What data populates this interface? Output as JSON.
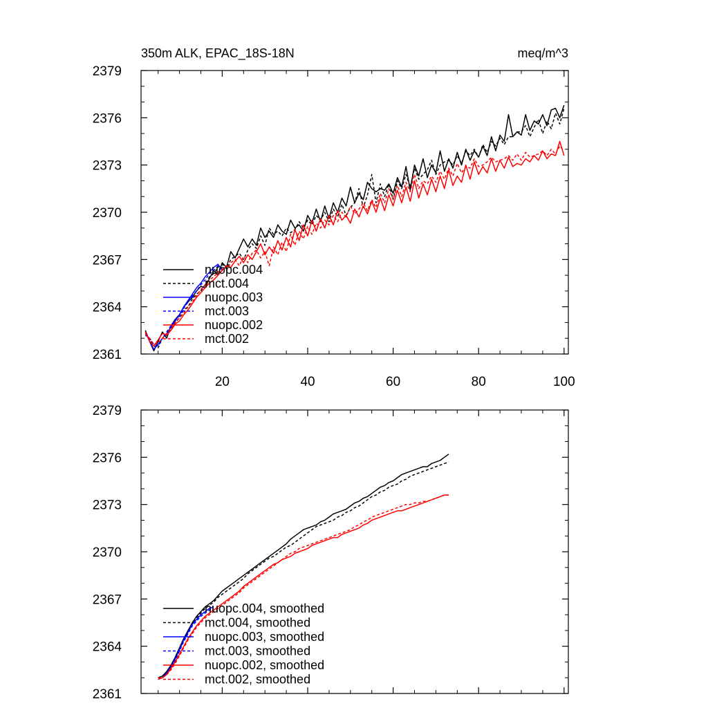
{
  "figure": {
    "title": "350m ALK, EPAC_18S-18N",
    "units": "meq/m^3"
  },
  "chart_data": [
    {
      "type": "line",
      "title": "350m ALK, EPAC_18S-18N",
      "units": "meq/m^3",
      "xlabel": "",
      "ylabel": "",
      "xlim": [
        1,
        101
      ],
      "ylim": [
        2361,
        2379
      ],
      "xticks": [
        20,
        40,
        60,
        80,
        100
      ],
      "yticks": [
        2361,
        2364,
        2367,
        2370,
        2373,
        2376,
        2379
      ],
      "legend_position": "bottom-left",
      "series": [
        {
          "name": "nuopc.004",
          "color": "#000000",
          "dash": "solid",
          "x_start": 2,
          "values": [
            2362.5,
            2361.8,
            2361.2,
            2361.8,
            2362.4,
            2362.0,
            2362.8,
            2363.2,
            2363.5,
            2364.0,
            2364.3,
            2364.6,
            2365.0,
            2365.3,
            2365.2,
            2365.8,
            2366.3,
            2366.0,
            2366.8,
            2366.5,
            2367.5,
            2367.1,
            2367.7,
            2368.3,
            2367.8,
            2368.3,
            2367.9,
            2369.0,
            2368.4,
            2368.8,
            2368.4,
            2369.2,
            2368.8,
            2368.6,
            2369.5,
            2369.0,
            2369.2,
            2368.8,
            2369.8,
            2369.3,
            2370.2,
            2369.4,
            2370.4,
            2369.6,
            2370.6,
            2370.0,
            2370.9,
            2370.4,
            2371.6,
            2370.6,
            2371.2,
            2370.8,
            2371.9,
            2371.5,
            2371.3,
            2371.5,
            2371.4,
            2371.8,
            2371.2,
            2372.2,
            2371.6,
            2372.9,
            2371.4,
            2373.0,
            2372.3,
            2373.4,
            2372.2,
            2373.0,
            2372.5,
            2373.9,
            2372.6,
            2373.4,
            2372.8,
            2373.8,
            2373.0,
            2374.0,
            2373.3,
            2373.9,
            2373.5,
            2374.2,
            2373.6,
            2374.8,
            2373.9,
            2374.9,
            2374.5,
            2376.2,
            2374.8,
            2375.1,
            2374.9,
            2376.2,
            2375.2,
            2375.8,
            2375.6,
            2376.2,
            2375.5,
            2376.5,
            2376.6,
            2376.0,
            2376.8
          ]
        },
        {
          "name": "mct.004",
          "color": "#000000",
          "dash": "dashed",
          "x_start": 2,
          "values": [
            2362.3,
            2361.9,
            2361.5,
            2361.4,
            2362.0,
            2362.2,
            2362.6,
            2363.0,
            2363.3,
            2363.8,
            2364.0,
            2364.5,
            2364.8,
            2365.0,
            2365.4,
            2365.9,
            2366.1,
            2366.5,
            2366.7,
            2366.4,
            2367.0,
            2367.2,
            2367.4,
            2367.0,
            2367.6,
            2368.0,
            2367.7,
            2368.5,
            2367.9,
            2369.0,
            2368.6,
            2368.8,
            2368.5,
            2369.0,
            2368.7,
            2368.9,
            2369.4,
            2369.0,
            2369.5,
            2369.2,
            2369.8,
            2369.5,
            2370.0,
            2369.4,
            2370.2,
            2369.7,
            2370.5,
            2369.8,
            2370.3,
            2370.6,
            2371.5,
            2370.3,
            2371.1,
            2372.4,
            2370.6,
            2371.8,
            2371.0,
            2371.8,
            2370.8,
            2372.0,
            2371.5,
            2372.4,
            2371.6,
            2372.8,
            2372.1,
            2372.4,
            2372.7,
            2373.3,
            2372.4,
            2373.0,
            2373.2,
            2373.3,
            2373.0,
            2373.6,
            2373.1,
            2373.9,
            2373.6,
            2374.0,
            2373.5,
            2374.3,
            2373.8,
            2374.5,
            2374.2,
            2374.7,
            2374.3,
            2374.8,
            2374.8,
            2375.1,
            2375.1,
            2375.5,
            2374.8,
            2375.4,
            2375.9,
            2375.0,
            2375.8,
            2375.3,
            2376.3,
            2375.6,
            2376.6
          ]
        },
        {
          "name": "nuopc.003",
          "color": "#0000ff",
          "dash": "solid",
          "x_start": 2,
          "values": [
            2362.4,
            2361.8,
            2361.3,
            2361.6,
            2362.0,
            2362.3,
            2362.7,
            2363.1,
            2363.5,
            2364.0,
            2364.4,
            2364.8,
            2365.2,
            2365.5,
            2365.9,
            2366.2,
            2366.5,
            2366.7,
            2366.3
          ]
        },
        {
          "name": "mct.003",
          "color": "#0000ff",
          "dash": "dashed",
          "x_start": 2,
          "values": [
            2362.2,
            2362.0,
            2361.6,
            2361.5,
            2362.0,
            2362.4,
            2362.8,
            2363.2,
            2363.4,
            2363.9,
            2364.3,
            2364.7,
            2365.0,
            2365.4,
            2365.7,
            2366.1,
            2366.3,
            2366.6,
            2366.4
          ]
        },
        {
          "name": "nuopc.002",
          "color": "#ff0000",
          "dash": "solid",
          "x_start": 2,
          "values": [
            2362.4,
            2361.8,
            2361.5,
            2361.9,
            2362.3,
            2362.2,
            2362.5,
            2362.9,
            2363.1,
            2363.5,
            2363.8,
            2364.2,
            2364.6,
            2364.9,
            2365.2,
            2365.5,
            2365.7,
            2366.0,
            2366.3,
            2366.6,
            2366.5,
            2366.9,
            2367.2,
            2366.8,
            2367.3,
            2367.0,
            2367.5,
            2368.0,
            2367.3,
            2367.8,
            2367.4,
            2368.2,
            2367.6,
            2368.4,
            2367.8,
            2368.9,
            2368.2,
            2369.2,
            2368.5,
            2369.5,
            2368.8,
            2369.6,
            2369.0,
            2369.8,
            2369.2,
            2370.1,
            2369.5,
            2369.8,
            2369.3,
            2370.2,
            2369.7,
            2370.4,
            2369.9,
            2370.7,
            2370.0,
            2370.9,
            2370.1,
            2371.1,
            2370.4,
            2371.4,
            2370.6,
            2371.6,
            2370.7,
            2372.0,
            2370.9,
            2371.8,
            2371.1,
            2372.1,
            2371.3,
            2372.3,
            2371.5,
            2372.7,
            2371.7,
            2372.3,
            2371.9,
            2373.0,
            2372.1,
            2373.2,
            2372.4,
            2372.9,
            2372.5,
            2373.4,
            2372.6,
            2373.3,
            2372.8,
            2373.5,
            2372.9,
            2373.1,
            2373.0,
            2373.4,
            2373.2,
            2373.6,
            2373.3,
            2373.9,
            2373.4,
            2373.7,
            2373.6,
            2374.5,
            2373.6
          ]
        },
        {
          "name": "mct.002",
          "color": "#ff0000",
          "dash": "dashed",
          "x_start": 2,
          "values": [
            2362.3,
            2362.0,
            2361.6,
            2361.7,
            2362.0,
            2362.3,
            2362.6,
            2363.0,
            2363.3,
            2363.6,
            2364.0,
            2364.3,
            2364.7,
            2365.1,
            2365.4,
            2365.7,
            2365.9,
            2366.2,
            2366.4,
            2366.3,
            2366.8,
            2367.0,
            2366.6,
            2367.2,
            2366.8,
            2367.4,
            2367.6,
            2367.1,
            2367.5,
            2366.6,
            2367.8,
            2367.3,
            2368.1,
            2367.5,
            2368.6,
            2367.9,
            2368.8,
            2368.3,
            2369.1,
            2368.6,
            2369.3,
            2369.0,
            2369.5,
            2369.2,
            2369.8,
            2369.4,
            2370.0,
            2369.7,
            2370.4,
            2369.9,
            2370.2,
            2370.6,
            2370.1,
            2370.8,
            2370.3,
            2371.2,
            2370.6,
            2371.5,
            2370.8,
            2371.7,
            2371.0,
            2371.9,
            2371.3,
            2372.4,
            2371.5,
            2372.0,
            2371.8,
            2372.3,
            2371.9,
            2372.6,
            2372.1,
            2372.8,
            2372.3,
            2373.1,
            2372.5,
            2372.9,
            2372.8,
            2373.4,
            2372.9,
            2373.0,
            2373.2,
            2373.5,
            2373.2,
            2373.3,
            2373.4,
            2373.6,
            2373.3,
            2373.7,
            2373.3,
            2373.8,
            2373.5,
            2373.6,
            2373.7,
            2373.9,
            2373.6,
            2374.0,
            2373.7,
            2374.2,
            2373.9
          ]
        }
      ]
    },
    {
      "type": "line",
      "title": "",
      "xlabel": "",
      "ylabel": "",
      "xlim": [
        1,
        101
      ],
      "ylim": [
        2361,
        2379
      ],
      "xticks": [
        20,
        40,
        60,
        80,
        100
      ],
      "yticks": [
        2361,
        2364,
        2367,
        2370,
        2373,
        2376,
        2379
      ],
      "legend_position": "bottom-left",
      "series": [
        {
          "name": "nuopc.004, smoothed",
          "color": "#000000",
          "dash": "solid",
          "x_start": 5,
          "values": [
            2362.0,
            2362.1,
            2362.4,
            2362.8,
            2363.3,
            2363.9,
            2364.5,
            2365.0,
            2365.5,
            2365.9,
            2366.2,
            2366.5,
            2366.7,
            2366.9,
            2367.2,
            2367.5,
            2367.7,
            2367.9,
            2368.1,
            2368.3,
            2368.5,
            2368.7,
            2368.9,
            2369.1,
            2369.3,
            2369.5,
            2369.7,
            2369.9,
            2370.1,
            2370.3,
            2370.5,
            2370.8,
            2371.0,
            2371.2,
            2371.4,
            2371.5,
            2371.6,
            2371.7,
            2371.9,
            2372.0,
            2372.2,
            2372.4,
            2372.5,
            2372.6,
            2372.7,
            2372.9,
            2373.1,
            2373.2,
            2373.4,
            2373.5,
            2373.7,
            2373.9,
            2374.1,
            2374.2,
            2374.4,
            2374.5,
            2374.7,
            2374.9,
            2375.0,
            2375.1,
            2375.2,
            2375.3,
            2375.4,
            2375.4,
            2375.6,
            2375.7,
            2375.8,
            2376.0,
            2376.2
          ]
        },
        {
          "name": "mct.004, smoothed",
          "color": "#000000",
          "dash": "dashed",
          "x_start": 5,
          "values": [
            2362.0,
            2362.1,
            2362.3,
            2362.7,
            2363.2,
            2363.8,
            2364.4,
            2364.9,
            2365.4,
            2365.8,
            2366.1,
            2366.4,
            2366.6,
            2366.8,
            2367.1,
            2367.3,
            2367.5,
            2367.7,
            2367.9,
            2368.1,
            2368.3,
            2368.6,
            2368.8,
            2369.0,
            2369.2,
            2369.4,
            2369.6,
            2369.7,
            2369.9,
            2370.1,
            2370.3,
            2370.4,
            2370.6,
            2370.8,
            2371.0,
            2371.2,
            2371.4,
            2371.6,
            2371.7,
            2371.8,
            2371.9,
            2372.0,
            2372.2,
            2372.3,
            2372.5,
            2372.6,
            2372.8,
            2372.9,
            2373.1,
            2373.3,
            2373.5,
            2373.6,
            2373.8,
            2373.9,
            2374.1,
            2374.2,
            2374.3,
            2374.5,
            2374.6,
            2374.8,
            2374.9,
            2375.0,
            2375.1,
            2375.2,
            2375.3,
            2375.4,
            2375.5,
            2375.6,
            2375.7
          ]
        },
        {
          "name": "nuopc.003, smoothed",
          "color": "#0000ff",
          "dash": "solid",
          "x_start": 5,
          "values": [
            2361.9,
            2362.0,
            2362.3,
            2362.7,
            2363.2,
            2363.8,
            2364.4,
            2364.9,
            2365.4,
            2365.7,
            2366.0,
            2366.2,
            2366.4,
            2366.5
          ]
        },
        {
          "name": "mct.003, smoothed",
          "color": "#0000ff",
          "dash": "dashed",
          "x_start": 5,
          "values": [
            2361.9,
            2362.0,
            2362.2,
            2362.6,
            2363.1,
            2363.7,
            2364.3,
            2364.8,
            2365.3,
            2365.6,
            2365.9,
            2366.1,
            2366.3,
            2366.4
          ]
        },
        {
          "name": "nuopc.002, smoothed",
          "color": "#ff0000",
          "dash": "solid",
          "x_start": 5,
          "values": [
            2361.9,
            2362.0,
            2362.2,
            2362.6,
            2363.0,
            2363.5,
            2364.0,
            2364.5,
            2364.9,
            2365.3,
            2365.6,
            2365.9,
            2366.1,
            2366.3,
            2366.5,
            2366.7,
            2366.9,
            2367.1,
            2367.3,
            2367.5,
            2367.8,
            2368.0,
            2368.2,
            2368.4,
            2368.6,
            2368.8,
            2369.0,
            2369.2,
            2369.3,
            2369.5,
            2369.6,
            2369.7,
            2369.9,
            2370.0,
            2370.1,
            2370.2,
            2370.4,
            2370.5,
            2370.6,
            2370.7,
            2370.8,
            2370.9,
            2370.9,
            2371.1,
            2371.2,
            2371.3,
            2371.4,
            2371.5,
            2371.7,
            2371.8,
            2372.0,
            2372.1,
            2372.2,
            2372.3,
            2372.4,
            2372.5,
            2372.6,
            2372.6,
            2372.7,
            2372.8,
            2372.9,
            2373.0,
            2373.1,
            2373.2,
            2373.3,
            2373.4,
            2373.5,
            2373.6,
            2373.6
          ]
        },
        {
          "name": "mct.002, smoothed",
          "color": "#ff0000",
          "dash": "dashed",
          "x_start": 5,
          "values": [
            2362.0,
            2362.0,
            2362.2,
            2362.5,
            2362.9,
            2363.4,
            2363.9,
            2364.4,
            2364.8,
            2365.2,
            2365.5,
            2365.8,
            2366.0,
            2366.2,
            2366.4,
            2366.6,
            2366.8,
            2367.0,
            2367.2,
            2367.4,
            2367.7,
            2367.9,
            2368.1,
            2368.3,
            2368.5,
            2368.7,
            2368.9,
            2369.1,
            2369.3,
            2369.5,
            2369.7,
            2369.9,
            2370.0,
            2370.2,
            2370.3,
            2370.4,
            2370.5,
            2370.6,
            2370.7,
            2370.8,
            2370.9,
            2371.0,
            2371.1,
            2371.2,
            2371.3,
            2371.4,
            2371.6,
            2371.7,
            2371.9,
            2372.0,
            2372.2,
            2372.3,
            2372.4,
            2372.5,
            2372.6,
            2372.7,
            2372.8,
            2372.9,
            2373.0,
            2373.0,
            2373.1,
            2373.1,
            2373.2,
            2373.2,
            2373.3,
            2373.4,
            2373.5,
            2373.6,
            2373.6
          ]
        }
      ]
    }
  ]
}
